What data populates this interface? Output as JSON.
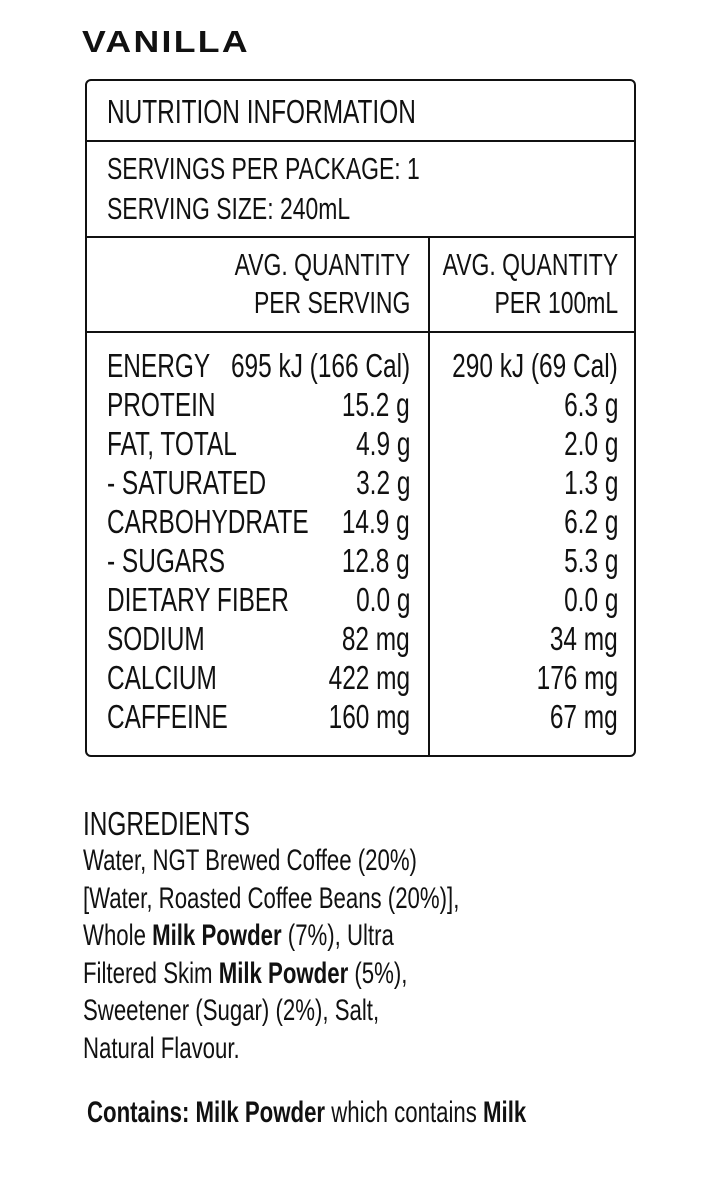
{
  "title": "VANILLA",
  "nutrition": {
    "heading": "NUTRITION INFORMATION",
    "servings_per_package": "SERVINGS PER PACKAGE: 1",
    "serving_size": "SERVING SIZE: 240mL",
    "columns": [
      [
        "AVG. QUANTITY",
        "PER SERVING"
      ],
      [
        "AVG. QUANTITY",
        "PER 100mL"
      ]
    ],
    "rows": [
      [
        "ENERGY",
        "695 kJ (166 Cal)",
        "290 kJ (69 Cal)"
      ],
      [
        "PROTEIN",
        "15.2 g",
        "6.3 g"
      ],
      [
        "FAT, TOTAL",
        "4.9 g",
        "2.0 g"
      ],
      [
        "- SATURATED",
        "3.2 g",
        "1.3 g"
      ],
      [
        "CARBOHYDRATE",
        "14.9 g",
        "6.2 g"
      ],
      [
        "- SUGARS",
        "12.8 g",
        "5.3 g"
      ],
      [
        "DIETARY FIBER",
        "0.0 g",
        "0.0 g"
      ],
      [
        "SODIUM",
        "82 mg",
        "34 mg"
      ],
      [
        "CALCIUM",
        "422 mg",
        "176 mg"
      ],
      [
        "CAFFEINE",
        "160 mg",
        "67 mg"
      ]
    ]
  },
  "ingredients": {
    "heading": "INGREDIENTS",
    "lines": [
      [
        {
          "text": "Water, NGT Brewed Coffee (20%)",
          "bold": false
        }
      ],
      [
        {
          "text": "[Water, Roasted Coffee Beans (20%)],",
          "bold": false
        }
      ],
      [
        {
          "text": "Whole ",
          "bold": false
        },
        {
          "text": "Milk Powder",
          "bold": true
        },
        {
          "text": " (7%), Ultra",
          "bold": false
        }
      ],
      [
        {
          "text": "Filtered Skim ",
          "bold": false
        },
        {
          "text": "Milk Powder",
          "bold": true
        },
        {
          "text": " (5%),",
          "bold": false
        }
      ],
      [
        {
          "text": "Sweetener (Sugar) (2%), Salt,",
          "bold": false
        }
      ],
      [
        {
          "text": "Natural Flavour.",
          "bold": false
        }
      ]
    ]
  },
  "contains": [
    {
      "text": "Contains:",
      "bold": true
    },
    {
      "text": " ",
      "bold": false
    },
    {
      "text": "Milk Powder",
      "bold": true
    },
    {
      "text": " which contains ",
      "bold": false
    },
    {
      "text": "Milk",
      "bold": true
    }
  ]
}
